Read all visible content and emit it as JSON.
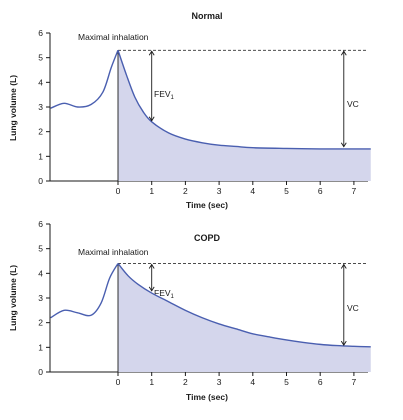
{
  "chart_data": [
    {
      "type": "line",
      "title": "Normal",
      "xlabel": "Time (sec)",
      "ylabel": "Lung volume (L)",
      "x_ticks": [
        "0",
        "1",
        "2",
        "3",
        "4",
        "5",
        "6",
        "7"
      ],
      "y_ticks": [
        "0",
        "1",
        "2",
        "3",
        "4",
        "5",
        "6"
      ],
      "ylim": [
        0,
        6
      ],
      "xlim_sec": [
        -2,
        7.5
      ],
      "annotations": {
        "max_label": "Maximal inhalation",
        "fev_main": "FEV",
        "fev_sub": "1",
        "vc_label": "VC"
      },
      "peak_volume": 5.3,
      "residual_volume": 1.3,
      "fev_arrow": {
        "x_sec": 1,
        "from": 5.3,
        "to": 2.4
      },
      "vc_arrow": {
        "x_sec": 6.7,
        "from": 5.3,
        "to": 1.35
      },
      "pre_curve": [
        [
          -2,
          2.95
        ],
        [
          -1.6,
          3.15
        ],
        [
          -1.2,
          3.0
        ],
        [
          -0.8,
          3.1
        ],
        [
          -0.45,
          3.6
        ],
        [
          -0.2,
          4.6
        ],
        [
          0,
          5.3
        ]
      ],
      "exhale_curve": [
        [
          0,
          5.3
        ],
        [
          0.25,
          4.3
        ],
        [
          0.5,
          3.4
        ],
        [
          0.75,
          2.8
        ],
        [
          1,
          2.4
        ],
        [
          1.5,
          1.95
        ],
        [
          2,
          1.7
        ],
        [
          2.5,
          1.55
        ],
        [
          3,
          1.45
        ],
        [
          3.5,
          1.4
        ],
        [
          4,
          1.35
        ],
        [
          5,
          1.32
        ],
        [
          6,
          1.3
        ],
        [
          7,
          1.3
        ],
        [
          7.5,
          1.3
        ]
      ]
    },
    {
      "type": "line",
      "title": "COPD",
      "xlabel": "Time (sec)",
      "ylabel": "Lung volume (L)",
      "x_ticks": [
        "0",
        "1",
        "2",
        "3",
        "4",
        "5",
        "6",
        "7"
      ],
      "y_ticks": [
        "0",
        "1",
        "2",
        "3",
        "4",
        "5",
        "6"
      ],
      "ylim": [
        0,
        6
      ],
      "xlim_sec": [
        -2,
        7.5
      ],
      "annotations": {
        "max_label": "Maximal inhalation",
        "fev_main": "FEV",
        "fev_sub": "1",
        "vc_label": "VC"
      },
      "peak_volume": 4.4,
      "residual_volume": 1.0,
      "fev_arrow": {
        "x_sec": 1,
        "from": 4.4,
        "to": 3.25
      },
      "vc_arrow": {
        "x_sec": 6.7,
        "from": 4.4,
        "to": 1.05
      },
      "pre_curve": [
        [
          -2,
          2.2
        ],
        [
          -1.6,
          2.5
        ],
        [
          -1.2,
          2.4
        ],
        [
          -0.8,
          2.3
        ],
        [
          -0.5,
          2.8
        ],
        [
          -0.25,
          3.8
        ],
        [
          0,
          4.4
        ]
      ],
      "exhale_curve": [
        [
          0,
          4.4
        ],
        [
          0.3,
          3.9
        ],
        [
          0.6,
          3.55
        ],
        [
          1,
          3.2
        ],
        [
          1.5,
          2.85
        ],
        [
          2,
          2.5
        ],
        [
          2.5,
          2.2
        ],
        [
          3,
          1.95
        ],
        [
          3.5,
          1.75
        ],
        [
          4,
          1.55
        ],
        [
          4.5,
          1.42
        ],
        [
          5,
          1.3
        ],
        [
          5.5,
          1.2
        ],
        [
          6,
          1.12
        ],
        [
          6.5,
          1.07
        ],
        [
          7,
          1.04
        ],
        [
          7.5,
          1.02
        ]
      ]
    }
  ],
  "colors": {
    "curve": "#4a5fb0",
    "fill": "#d4d6ec",
    "axis": "#1a1a1a"
  }
}
